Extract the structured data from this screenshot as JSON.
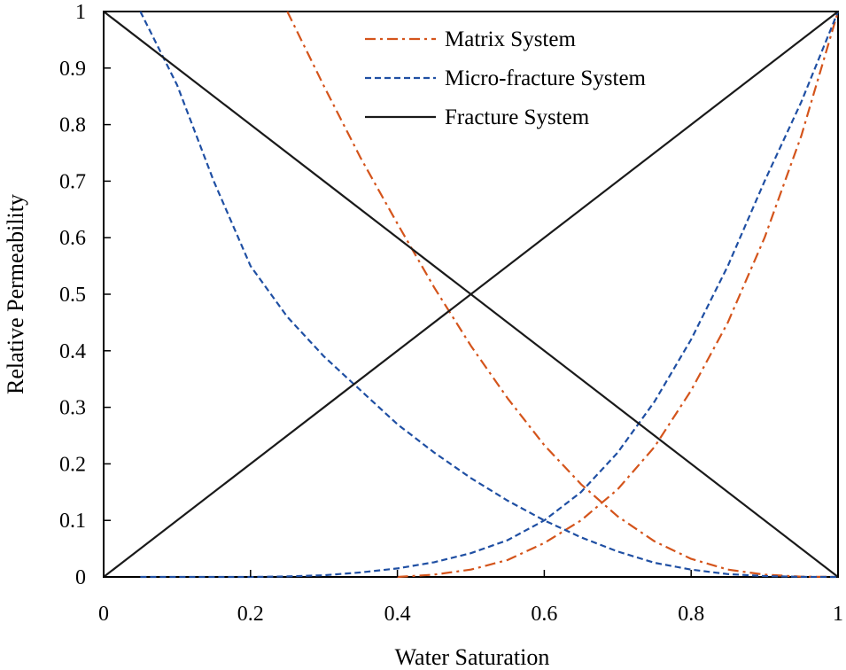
{
  "chart_data": {
    "type": "line",
    "title": "",
    "xlabel": "Water Saturation",
    "ylabel": "Relative Permeability",
    "xlim": [
      0,
      1
    ],
    "ylim": [
      0,
      1
    ],
    "xticks": [
      "0",
      "0.2",
      "0.4",
      "0.6",
      "0.8",
      "1"
    ],
    "xtick_values": [
      0,
      0.2,
      0.4,
      0.6,
      0.8,
      1
    ],
    "yticks": [
      "0",
      "0.1",
      "0.2",
      "0.3",
      "0.4",
      "0.5",
      "0.6",
      "0.7",
      "0.8",
      "0.9",
      "1"
    ],
    "ytick_values": [
      0,
      0.1,
      0.2,
      0.3,
      0.4,
      0.5,
      0.6,
      0.7,
      0.8,
      0.9,
      1
    ],
    "grid": false,
    "legend_position": "top-right",
    "series": [
      {
        "name": "Matrix System",
        "color": "#D4541B",
        "style": "dash-dot",
        "curves": [
          {
            "role": "oil",
            "x": [
              0.25,
              0.3,
              0.35,
              0.4,
              0.45,
              0.5,
              0.55,
              0.6,
              0.65,
              0.7,
              0.75,
              0.8,
              0.85,
              0.9,
              0.95,
              1.0
            ],
            "y": [
              1.0,
              0.868,
              0.741,
              0.625,
              0.512,
              0.409,
              0.316,
              0.233,
              0.164,
              0.107,
              0.063,
              0.032,
              0.013,
              0.004,
              0.0005,
              0.0
            ]
          },
          {
            "role": "water",
            "x": [
              0.4,
              0.45,
              0.5,
              0.55,
              0.6,
              0.65,
              0.7,
              0.75,
              0.8,
              0.85,
              0.9,
              0.95,
              1.0
            ],
            "y": [
              0.0,
              0.004,
              0.013,
              0.03,
              0.06,
              0.1,
              0.155,
              0.23,
              0.33,
              0.45,
              0.6,
              0.78,
              1.0
            ]
          }
        ]
      },
      {
        "name": "Micro-fracture System",
        "color": "#1F4FA3",
        "style": "dashed",
        "curves": [
          {
            "role": "oil",
            "x": [
              0.05,
              0.1,
              0.15,
              0.2,
              0.25,
              0.3,
              0.35,
              0.4,
              0.45,
              0.5,
              0.55,
              0.6,
              0.65,
              0.7,
              0.75,
              0.8,
              0.85,
              0.9,
              0.95,
              1.0
            ],
            "y": [
              1.0,
              0.87,
              0.7,
              0.55,
              0.46,
              0.39,
              0.33,
              0.27,
              0.22,
              0.175,
              0.135,
              0.1,
              0.07,
              0.045,
              0.025,
              0.013,
              0.005,
              0.0015,
              0.0002,
              0.0
            ]
          },
          {
            "role": "water",
            "x": [
              0.05,
              0.2,
              0.25,
              0.3,
              0.35,
              0.4,
              0.45,
              0.5,
              0.55,
              0.6,
              0.65,
              0.7,
              0.75,
              0.8,
              0.85,
              0.9,
              0.95,
              1.0
            ],
            "y": [
              0.0,
              0.0,
              0.001,
              0.003,
              0.008,
              0.015,
              0.026,
              0.042,
              0.065,
              0.1,
              0.15,
              0.22,
              0.31,
              0.42,
              0.55,
              0.7,
              0.84,
              1.0
            ]
          }
        ]
      },
      {
        "name": "Fracture System",
        "color": "#1A1A1A",
        "style": "solid",
        "curves": [
          {
            "role": "oil",
            "x": [
              0,
              1
            ],
            "y": [
              1,
              0
            ]
          },
          {
            "role": "water",
            "x": [
              0,
              1
            ],
            "y": [
              0,
              1
            ]
          }
        ]
      }
    ]
  }
}
